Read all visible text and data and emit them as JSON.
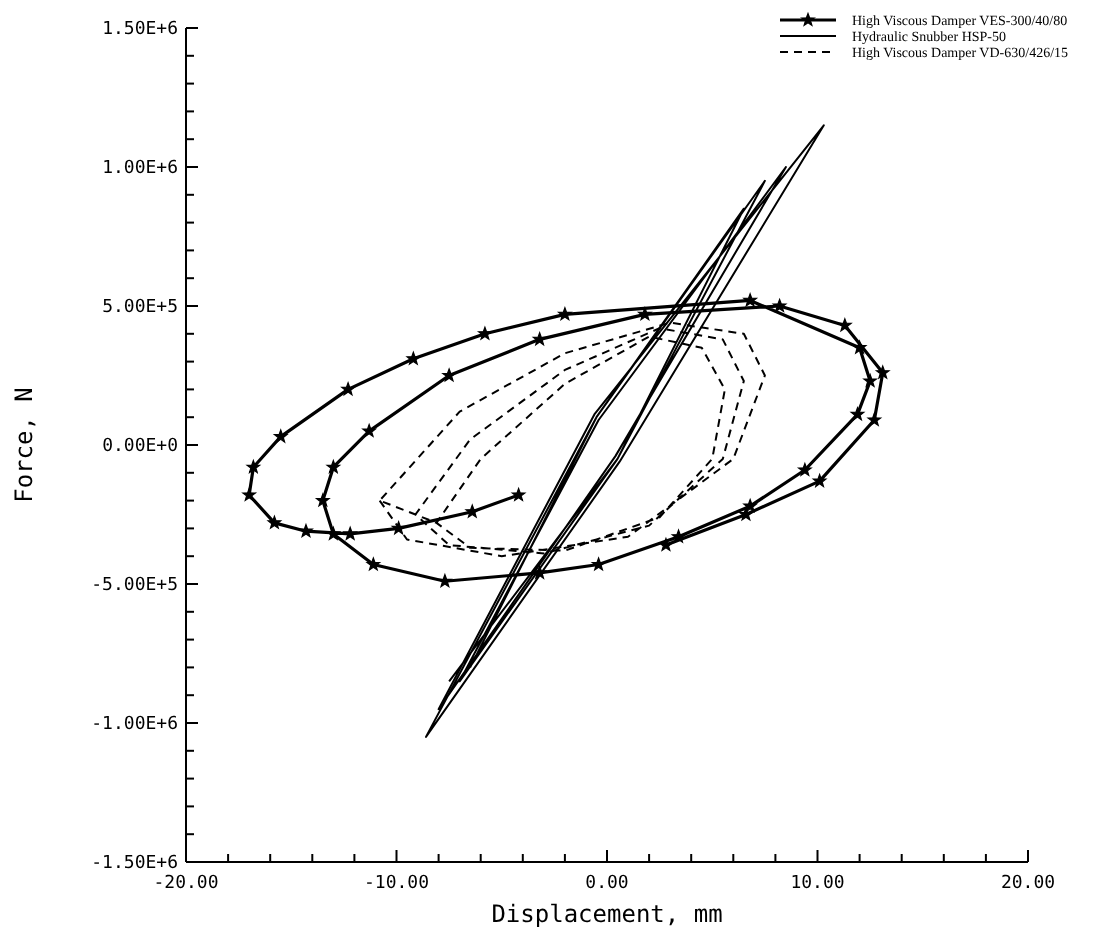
{
  "chart_data": {
    "type": "line",
    "xlabel": "Displacement, mm",
    "ylabel": "Force, N",
    "legend": "top right",
    "grid": false,
    "xlim": [
      -20,
      20
    ],
    "xticks": [
      {
        "value": -20,
        "label": "-20.00"
      },
      {
        "value": -18,
        "label": null
      },
      {
        "value": -16,
        "label": null
      },
      {
        "value": -14,
        "label": null
      },
      {
        "value": -12,
        "label": null
      },
      {
        "value": -10,
        "label": "-10.00"
      },
      {
        "value": -8,
        "label": null
      },
      {
        "value": -6,
        "label": null
      },
      {
        "value": -4,
        "label": null
      },
      {
        "value": -2,
        "label": null
      },
      {
        "value": 0,
        "label": "0.00"
      },
      {
        "value": 2,
        "label": null
      },
      {
        "value": 4,
        "label": null
      },
      {
        "value": 6,
        "label": null
      },
      {
        "value": 8,
        "label": null
      },
      {
        "value": 10,
        "label": "10.00"
      },
      {
        "value": 12,
        "label": null
      },
      {
        "value": 14,
        "label": null
      },
      {
        "value": 16,
        "label": null
      },
      {
        "value": 18,
        "label": null
      },
      {
        "value": 20,
        "label": "20.00"
      }
    ],
    "ylim": [
      -1500000,
      1500000
    ],
    "yticks": [
      {
        "value": -1500000,
        "label": "-1.50E+6"
      },
      {
        "value": -1400000,
        "label": null
      },
      {
        "value": -1300000,
        "label": null
      },
      {
        "value": -1200000,
        "label": null
      },
      {
        "value": -1100000,
        "label": null
      },
      {
        "value": -1000000,
        "label": "-1.00E+6"
      },
      {
        "value": -900000,
        "label": null
      },
      {
        "value": -800000,
        "label": null
      },
      {
        "value": -700000,
        "label": null
      },
      {
        "value": -600000,
        "label": null
      },
      {
        "value": -500000,
        "label": "-5.00E+5"
      },
      {
        "value": -400000,
        "label": null
      },
      {
        "value": -300000,
        "label": null
      },
      {
        "value": -200000,
        "label": null
      },
      {
        "value": -100000,
        "label": null
      },
      {
        "value": 0,
        "label": "0.00E+0"
      },
      {
        "value": 100000,
        "label": null
      },
      {
        "value": 200000,
        "label": null
      },
      {
        "value": 300000,
        "label": null
      },
      {
        "value": 400000,
        "label": null
      },
      {
        "value": 500000,
        "label": "5.00E+5"
      },
      {
        "value": 600000,
        "label": null
      },
      {
        "value": 700000,
        "label": null
      },
      {
        "value": 800000,
        "label": null
      },
      {
        "value": 900000,
        "label": null
      },
      {
        "value": 1000000,
        "label": "1.00E+6"
      },
      {
        "value": 1100000,
        "label": null
      },
      {
        "value": 1200000,
        "label": null
      },
      {
        "value": 1300000,
        "label": null
      },
      {
        "value": 1400000,
        "label": null
      },
      {
        "value": 1500000,
        "label": "1.50E+6"
      }
    ],
    "series": [
      {
        "name": "High Viscous Damper VES-300/40/80",
        "color": "#000000",
        "marker": "star",
        "line_style": "solid",
        "x": [
          -4.2,
          -6.4,
          -9.9,
          -12.2,
          -14.3,
          -15.8,
          -17.0,
          -16.8,
          -15.5,
          -12.3,
          -9.2,
          -5.8,
          -2.0,
          6.8,
          12.0,
          12.5,
          11.9,
          9.4,
          6.8,
          3.4,
          -0.4,
          -3.2,
          -7.7,
          -11.1,
          -13.0,
          -13.5,
          -13.0,
          -11.3,
          -7.5,
          -3.2,
          1.8,
          8.2,
          11.3,
          13.1,
          12.7,
          10.1,
          6.6,
          2.8
        ],
        "values": [
          -180000,
          -240000,
          -300000,
          -320000,
          -310000,
          -280000,
          -180000,
          -80000,
          30000,
          200000,
          310000,
          400000,
          470000,
          520000,
          350000,
          230000,
          110000,
          -90000,
          -220000,
          -330000,
          -430000,
          -460000,
          -490000,
          -430000,
          -320000,
          -200000,
          -80000,
          50000,
          250000,
          380000,
          470000,
          500000,
          430000,
          260000,
          90000,
          -130000,
          -250000,
          -360000
        ]
      },
      {
        "name": "Hydraulic Snubber HSP-50",
        "color": "#000000",
        "marker": "none",
        "line_style": "solid",
        "x": [
          -7.5,
          0.5,
          6.5,
          -0.5,
          -8.6,
          0.6,
          10.3,
          -0.6,
          -8,
          0.4,
          8.5,
          -0.4,
          -7,
          0.5,
          7.5,
          -0.5,
          -6.5
        ],
        "values": [
          -850000,
          -50000,
          850000,
          100000,
          -1050000,
          -60000,
          1150000,
          110000,
          -950000,
          -40000,
          1000000,
          90000,
          -850000,
          -50000,
          950000,
          100000,
          -800000
        ]
      },
      {
        "name": "High Viscous Damper VD-630/426/15",
        "color": "#000000",
        "marker": "none",
        "line_style": "dashed",
        "x": [
          -10.8,
          -9.5,
          -5,
          1,
          6,
          7.5,
          6.5,
          3,
          -2,
          -7,
          -10.8,
          -9.1,
          -7.5,
          -3,
          2,
          5.5,
          6.5,
          5.5,
          2.5,
          -2,
          -6.5,
          -9.1,
          -8.1,
          -6.5,
          -2,
          2.5,
          5,
          5.6,
          4.5,
          2,
          -2,
          -6,
          -8.1
        ],
        "values": [
          -200000,
          -340000,
          -400000,
          -330000,
          -50000,
          250000,
          400000,
          440000,
          330000,
          120000,
          -200000,
          -250000,
          -360000,
          -390000,
          -290000,
          -50000,
          230000,
          380000,
          420000,
          270000,
          20000,
          -250000,
          -280000,
          -370000,
          -380000,
          -260000,
          -50000,
          200000,
          350000,
          390000,
          220000,
          -50000,
          -280000
        ]
      }
    ]
  }
}
